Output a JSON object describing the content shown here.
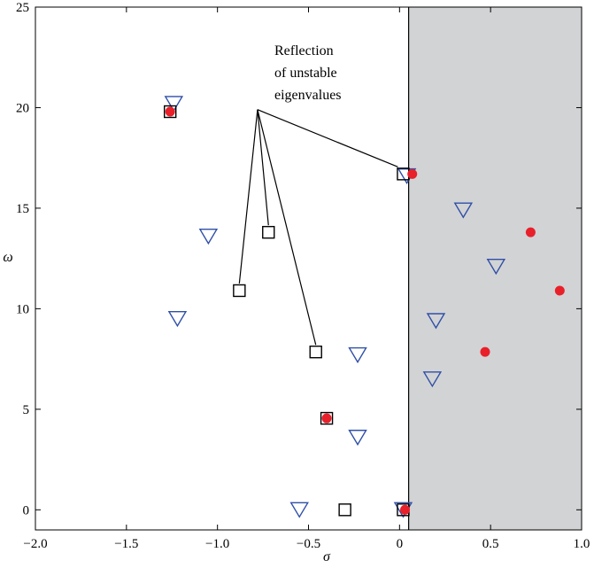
{
  "chart_data": {
    "type": "scatter",
    "title": "",
    "xlabel": "σ",
    "ylabel": "ω",
    "xlim": [
      -2.0,
      1.0
    ],
    "ylim": [
      -1,
      25
    ],
    "xticks": [
      -2.0,
      -1.5,
      -1.0,
      -0.5,
      0,
      0.5,
      1.0
    ],
    "xtick_labels": [
      "−2.0",
      "−1.5",
      "−1.0",
      "−0.5",
      "0",
      "0.5",
      "1.0"
    ],
    "yticks": [
      0,
      5,
      10,
      15,
      20,
      25
    ],
    "ytick_labels": [
      "0",
      "5",
      "10",
      "15",
      "20",
      "25"
    ],
    "grid": false,
    "shaded_region": {
      "x_from": 0.05,
      "x_to": 1.0,
      "color": "#d2d3d5"
    },
    "boundary_line_x": 0.05,
    "series": [
      {
        "marker": "circle",
        "color": "#e8202a",
        "points": [
          [
            -1.26,
            19.8
          ],
          [
            -0.4,
            4.55
          ],
          [
            0.03,
            0.0
          ],
          [
            0.07,
            16.7
          ],
          [
            0.47,
            7.85
          ],
          [
            0.72,
            13.8
          ],
          [
            0.88,
            10.9
          ]
        ]
      },
      {
        "marker": "square",
        "color": "#000000",
        "points": [
          [
            -1.26,
            19.8
          ],
          [
            -0.88,
            10.9
          ],
          [
            -0.72,
            13.8
          ],
          [
            -0.46,
            7.85
          ],
          [
            -0.4,
            4.55
          ],
          [
            -0.3,
            0.0
          ],
          [
            0.02,
            16.7
          ],
          [
            0.02,
            0.0
          ]
        ]
      },
      {
        "marker": "triangle-down",
        "color": "#2f4fa8",
        "points": [
          [
            -1.24,
            20.2
          ],
          [
            -1.05,
            13.6
          ],
          [
            -1.22,
            9.5
          ],
          [
            -0.55,
            0.0
          ],
          [
            -0.23,
            7.7
          ],
          [
            -0.23,
            3.6
          ],
          [
            0.04,
            16.6
          ],
          [
            0.02,
            0.0
          ],
          [
            0.35,
            14.9
          ],
          [
            0.53,
            12.1
          ],
          [
            0.2,
            9.4
          ],
          [
            0.18,
            6.5
          ]
        ]
      }
    ],
    "annotation": {
      "lines": [
        "Reflection",
        "of unstable",
        "eigenvalues"
      ],
      "hub": [
        -0.78,
        19.9
      ],
      "targets": [
        [
          -0.88,
          10.9
        ],
        [
          -0.72,
          13.8
        ],
        [
          -0.46,
          7.85
        ],
        [
          0.02,
          16.7
        ]
      ]
    }
  }
}
